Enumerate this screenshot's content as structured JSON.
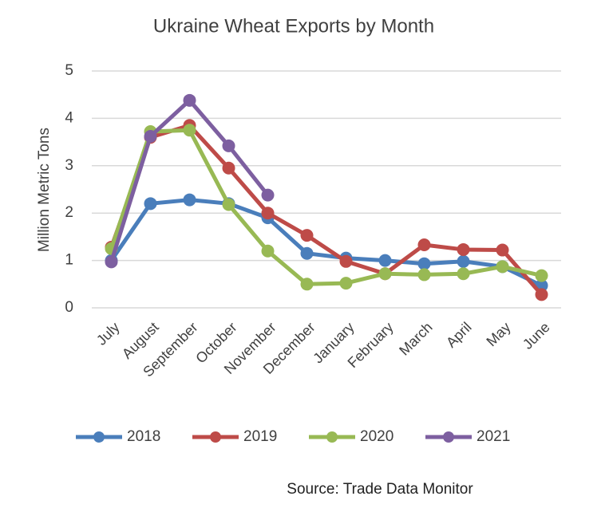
{
  "chart_data": {
    "type": "line",
    "title": "Ukraine Wheat Exports by Month",
    "y_label": "Million Metric Tons",
    "source": "Source: Trade Data Monitor",
    "categories": [
      "July",
      "August",
      "September",
      "October",
      "November",
      "December",
      "January",
      "February",
      "March",
      "April",
      "May",
      "June"
    ],
    "series": [
      {
        "name": "2018",
        "color": "#4a7ebb",
        "values": [
          1.0,
          2.2,
          2.28,
          2.2,
          1.9,
          1.15,
          1.05,
          1.0,
          0.93,
          0.98,
          0.87,
          0.47
        ]
      },
      {
        "name": "2019",
        "color": "#be4b48",
        "values": [
          1.28,
          3.6,
          3.85,
          2.95,
          2.0,
          1.53,
          0.98,
          0.72,
          1.33,
          1.23,
          1.22,
          0.28
        ]
      },
      {
        "name": "2020",
        "color": "#98b954",
        "values": [
          1.25,
          3.72,
          3.75,
          2.18,
          1.2,
          0.5,
          0.52,
          0.72,
          0.7,
          0.72,
          0.87,
          0.68
        ]
      },
      {
        "name": "2021",
        "color": "#7d5fa0",
        "values": [
          0.97,
          3.62,
          4.38,
          3.42,
          2.38,
          null,
          null,
          null,
          null,
          null,
          null,
          null
        ]
      }
    ],
    "ylim": [
      0,
      5
    ],
    "yticks": [
      0,
      1,
      2,
      3,
      4,
      5
    ],
    "grid": true,
    "legend": "bottom"
  }
}
